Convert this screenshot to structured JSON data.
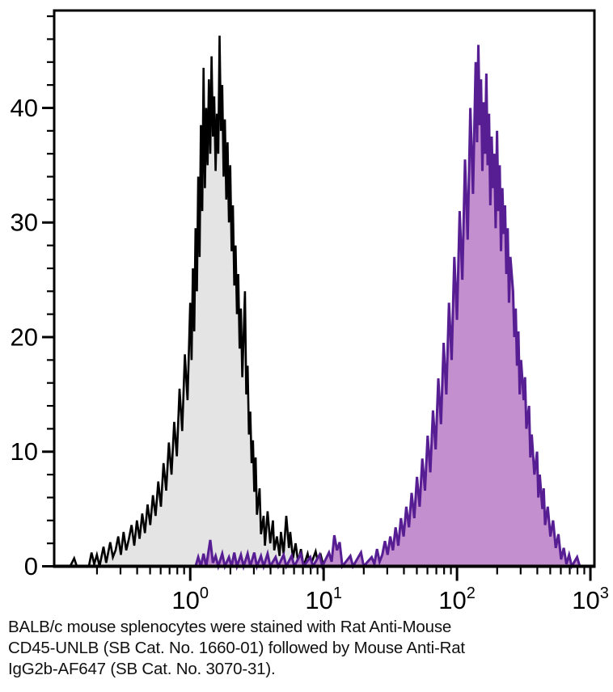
{
  "figure": {
    "background": "#ffffff"
  },
  "caption": {
    "line1": "BALB/c mouse splenocytes were stained with Rat Anti-Mouse",
    "line2": "CD45-UNLB (SB Cat. No. 1660-01) followed by Mouse Anti-Rat",
    "line3": "IgG2b-AF647 (SB Cat. No. 3070-31)."
  },
  "chart_data": {
    "type": "area",
    "subtype": "flow-cytometry-histogram-overlay",
    "title": "",
    "xlabel": "",
    "ylabel": "",
    "grid": false,
    "legend": null,
    "xscale": "log10",
    "xlim_log10": [
      -1.02,
      3.03
    ],
    "ylim": [
      0,
      48.5
    ],
    "yticks": [
      0,
      10,
      20,
      30,
      40
    ],
    "y_minor_step": 2,
    "xticks": [
      {
        "log10": 0,
        "base": "10",
        "exp": "0"
      },
      {
        "log10": 1,
        "base": "10",
        "exp": "1"
      },
      {
        "log10": 2,
        "base": "10",
        "exp": "2"
      },
      {
        "log10": 3,
        "base": "10",
        "exp": "3"
      }
    ],
    "axis_color": "#000000",
    "series": [
      {
        "name": "black-control",
        "line_color": "#000000",
        "fill_color": "#e4e4e4",
        "line_width": 2.6,
        "points_log10x_y": [
          [
            -1.02,
            0
          ],
          [
            -0.9,
            0
          ],
          [
            -0.87,
            0.7
          ],
          [
            -0.85,
            0
          ],
          [
            -0.76,
            0
          ],
          [
            -0.74,
            1.2
          ],
          [
            -0.72,
            0.2
          ],
          [
            -0.7,
            1
          ],
          [
            -0.68,
            0
          ],
          [
            -0.65,
            1.7
          ],
          [
            -0.63,
            0.3
          ],
          [
            -0.6,
            2.1
          ],
          [
            -0.58,
            0.8
          ],
          [
            -0.56,
            1.4
          ],
          [
            -0.54,
            2.6
          ],
          [
            -0.52,
            1
          ],
          [
            -0.5,
            3
          ],
          [
            -0.48,
            1.4
          ],
          [
            -0.46,
            2.4
          ],
          [
            -0.44,
            3.6
          ],
          [
            -0.42,
            1.8
          ],
          [
            -0.4,
            4
          ],
          [
            -0.38,
            2.4
          ],
          [
            -0.36,
            4.6
          ],
          [
            -0.34,
            2.9
          ],
          [
            -0.32,
            5.4
          ],
          [
            -0.3,
            3.6
          ],
          [
            -0.28,
            6.2
          ],
          [
            -0.26,
            4.4
          ],
          [
            -0.24,
            7.4
          ],
          [
            -0.22,
            5.2
          ],
          [
            -0.2,
            9
          ],
          [
            -0.18,
            6.6
          ],
          [
            -0.16,
            10.8
          ],
          [
            -0.14,
            8
          ],
          [
            -0.12,
            12.6
          ],
          [
            -0.1,
            9.6
          ],
          [
            -0.08,
            15.5
          ],
          [
            -0.06,
            11.8
          ],
          [
            -0.04,
            18.5
          ],
          [
            -0.02,
            14.5
          ],
          [
            0,
            23
          ],
          [
            0.01,
            18
          ],
          [
            0.02,
            26
          ],
          [
            0.03,
            20.5
          ],
          [
            0.04,
            29.5
          ],
          [
            0.05,
            24
          ],
          [
            0.06,
            34
          ],
          [
            0.07,
            27
          ],
          [
            0.08,
            38.5
          ],
          [
            0.09,
            31
          ],
          [
            0.1,
            43.5
          ],
          [
            0.11,
            33
          ],
          [
            0.12,
            40
          ],
          [
            0.13,
            35
          ],
          [
            0.14,
            42.5
          ],
          [
            0.15,
            36
          ],
          [
            0.16,
            44.5
          ],
          [
            0.17,
            37.5
          ],
          [
            0.18,
            41
          ],
          [
            0.19,
            34.5
          ],
          [
            0.2,
            39.5
          ],
          [
            0.21,
            36
          ],
          [
            0.22,
            46.3
          ],
          [
            0.23,
            38
          ],
          [
            0.24,
            42
          ],
          [
            0.25,
            34
          ],
          [
            0.26,
            39
          ],
          [
            0.27,
            32
          ],
          [
            0.28,
            37
          ],
          [
            0.29,
            30
          ],
          [
            0.3,
            35
          ],
          [
            0.31,
            27.5
          ],
          [
            0.32,
            31.5
          ],
          [
            0.33,
            24.5
          ],
          [
            0.34,
            28
          ],
          [
            0.35,
            22
          ],
          [
            0.36,
            25.5
          ],
          [
            0.37,
            19
          ],
          [
            0.38,
            22.5
          ],
          [
            0.39,
            16.5
          ],
          [
            0.4,
            20
          ],
          [
            0.41,
            24
          ],
          [
            0.42,
            15
          ],
          [
            0.43,
            17.5
          ],
          [
            0.44,
            11.5
          ],
          [
            0.45,
            13.5
          ],
          [
            0.46,
            9
          ],
          [
            0.47,
            11
          ],
          [
            0.48,
            6.5
          ],
          [
            0.49,
            9.5
          ],
          [
            0.5,
            4.5
          ],
          [
            0.52,
            6.8
          ],
          [
            0.53,
            2.8
          ],
          [
            0.55,
            4.4
          ],
          [
            0.56,
            1.8
          ],
          [
            0.58,
            4.8
          ],
          [
            0.6,
            2
          ],
          [
            0.62,
            4
          ],
          [
            0.63,
            1.4
          ],
          [
            0.65,
            2.6
          ],
          [
            0.67,
            0.9
          ],
          [
            0.68,
            3
          ],
          [
            0.7,
            1.1
          ],
          [
            0.72,
            4.4
          ],
          [
            0.74,
            1.6
          ],
          [
            0.75,
            3
          ],
          [
            0.77,
            0.7
          ],
          [
            0.79,
            2
          ],
          [
            0.81,
            0.3
          ],
          [
            0.83,
            1.5
          ],
          [
            0.85,
            0
          ],
          [
            0.88,
            1.1
          ],
          [
            0.9,
            0
          ],
          [
            0.94,
            1.3
          ],
          [
            0.96,
            0.2
          ],
          [
            0.98,
            0.9
          ],
          [
            1,
            0
          ],
          [
            1.05,
            0.7
          ],
          [
            1.07,
            0
          ],
          [
            1.12,
            0.5
          ],
          [
            1.14,
            0
          ],
          [
            3.03,
            0
          ]
        ]
      },
      {
        "name": "purple-stained",
        "line_color": "#571e93",
        "fill_color": "#c48fce",
        "line_width": 3,
        "points_log10x_y": [
          [
            -1.02,
            0
          ],
          [
            0.04,
            0
          ],
          [
            0.06,
            0.8
          ],
          [
            0.08,
            0
          ],
          [
            0.1,
            1.1
          ],
          [
            0.12,
            0
          ],
          [
            0.15,
            2.3
          ],
          [
            0.17,
            0.3
          ],
          [
            0.19,
            0.9
          ],
          [
            0.21,
            0
          ],
          [
            0.24,
            1.1
          ],
          [
            0.26,
            0
          ],
          [
            0.29,
            0.8
          ],
          [
            0.31,
            0
          ],
          [
            0.33,
            1.2
          ],
          [
            0.35,
            0
          ],
          [
            0.38,
            1
          ],
          [
            0.4,
            0
          ],
          [
            0.43,
            1.1
          ],
          [
            0.45,
            0
          ],
          [
            0.48,
            1.2
          ],
          [
            0.5,
            0
          ],
          [
            0.53,
            0.9
          ],
          [
            0.55,
            0
          ],
          [
            0.58,
            1.1
          ],
          [
            0.6,
            0
          ],
          [
            0.64,
            0.8
          ],
          [
            0.66,
            0
          ],
          [
            0.7,
            1
          ],
          [
            0.72,
            0
          ],
          [
            0.76,
            0.9
          ],
          [
            0.78,
            0
          ],
          [
            0.83,
            1.1
          ],
          [
            0.85,
            0
          ],
          [
            0.9,
            0.8
          ],
          [
            0.92,
            0
          ],
          [
            0.97,
            1
          ],
          [
            0.99,
            0
          ],
          [
            1.04,
            1.2
          ],
          [
            1.06,
            0.4
          ],
          [
            1.08,
            2.7
          ],
          [
            1.1,
            1.4
          ],
          [
            1.12,
            2.1
          ],
          [
            1.14,
            0
          ],
          [
            1.2,
            0.9
          ],
          [
            1.22,
            0
          ],
          [
            1.28,
            1.2
          ],
          [
            1.3,
            0
          ],
          [
            1.36,
            0.8
          ],
          [
            1.38,
            0.2
          ],
          [
            1.4,
            1.5
          ],
          [
            1.42,
            0.4
          ],
          [
            1.44,
            1
          ],
          [
            1.46,
            2.2
          ],
          [
            1.48,
            1
          ],
          [
            1.5,
            2.6
          ],
          [
            1.52,
            1.4
          ],
          [
            1.54,
            3.4
          ],
          [
            1.56,
            1.8
          ],
          [
            1.58,
            4.2
          ],
          [
            1.6,
            2.6
          ],
          [
            1.62,
            5.2
          ],
          [
            1.64,
            3.4
          ],
          [
            1.66,
            6.4
          ],
          [
            1.68,
            4.2
          ],
          [
            1.7,
            7.8
          ],
          [
            1.72,
            5.2
          ],
          [
            1.74,
            9.4
          ],
          [
            1.76,
            6.6
          ],
          [
            1.78,
            11.4
          ],
          [
            1.8,
            8.2
          ],
          [
            1.82,
            13.6
          ],
          [
            1.84,
            10.2
          ],
          [
            1.86,
            16.4
          ],
          [
            1.88,
            12.4
          ],
          [
            1.9,
            19.5
          ],
          [
            1.92,
            15
          ],
          [
            1.94,
            23
          ],
          [
            1.96,
            18
          ],
          [
            1.98,
            27
          ],
          [
            2,
            21.5
          ],
          [
            2.02,
            31
          ],
          [
            2.04,
            25
          ],
          [
            2.06,
            35.5
          ],
          [
            2.08,
            28.5
          ],
          [
            2.1,
            40
          ],
          [
            2.12,
            32.5
          ],
          [
            2.14,
            44
          ],
          [
            2.15,
            37
          ],
          [
            2.16,
            45.5
          ],
          [
            2.17,
            38.5
          ],
          [
            2.18,
            42.5
          ],
          [
            2.19,
            34.5
          ],
          [
            2.2,
            40.5
          ],
          [
            2.21,
            36
          ],
          [
            2.22,
            43
          ],
          [
            2.23,
            35
          ],
          [
            2.24,
            39.5
          ],
          [
            2.25,
            31.5
          ],
          [
            2.26,
            37.5
          ],
          [
            2.27,
            33
          ],
          [
            2.28,
            36
          ],
          [
            2.29,
            29.5
          ],
          [
            2.3,
            38
          ],
          [
            2.31,
            31
          ],
          [
            2.32,
            35
          ],
          [
            2.33,
            27.5
          ],
          [
            2.34,
            33
          ],
          [
            2.35,
            29
          ],
          [
            2.36,
            31.5
          ],
          [
            2.37,
            25.5
          ],
          [
            2.38,
            29.5
          ],
          [
            2.39,
            23
          ],
          [
            2.4,
            27
          ],
          [
            2.42,
            24
          ],
          [
            2.43,
            20
          ],
          [
            2.44,
            22.5
          ],
          [
            2.45,
            17.5
          ],
          [
            2.46,
            20.5
          ],
          [
            2.47,
            15
          ],
          [
            2.48,
            18
          ],
          [
            2.5,
            14.5
          ],
          [
            2.51,
            16.5
          ],
          [
            2.52,
            12
          ],
          [
            2.54,
            14
          ],
          [
            2.55,
            9.5
          ],
          [
            2.56,
            11.5
          ],
          [
            2.58,
            8
          ],
          [
            2.6,
            10
          ],
          [
            2.61,
            6
          ],
          [
            2.62,
            8
          ],
          [
            2.64,
            5
          ],
          [
            2.65,
            6.8
          ],
          [
            2.66,
            3.6
          ],
          [
            2.68,
            5.2
          ],
          [
            2.7,
            2.6
          ],
          [
            2.72,
            4
          ],
          [
            2.74,
            1.6
          ],
          [
            2.76,
            2.8
          ],
          [
            2.78,
            0.6
          ],
          [
            2.8,
            1.6
          ],
          [
            2.82,
            0.2
          ],
          [
            2.84,
            1
          ],
          [
            2.86,
            0
          ],
          [
            2.9,
            0.8
          ],
          [
            2.92,
            0
          ],
          [
            3.03,
            0
          ]
        ]
      }
    ]
  }
}
